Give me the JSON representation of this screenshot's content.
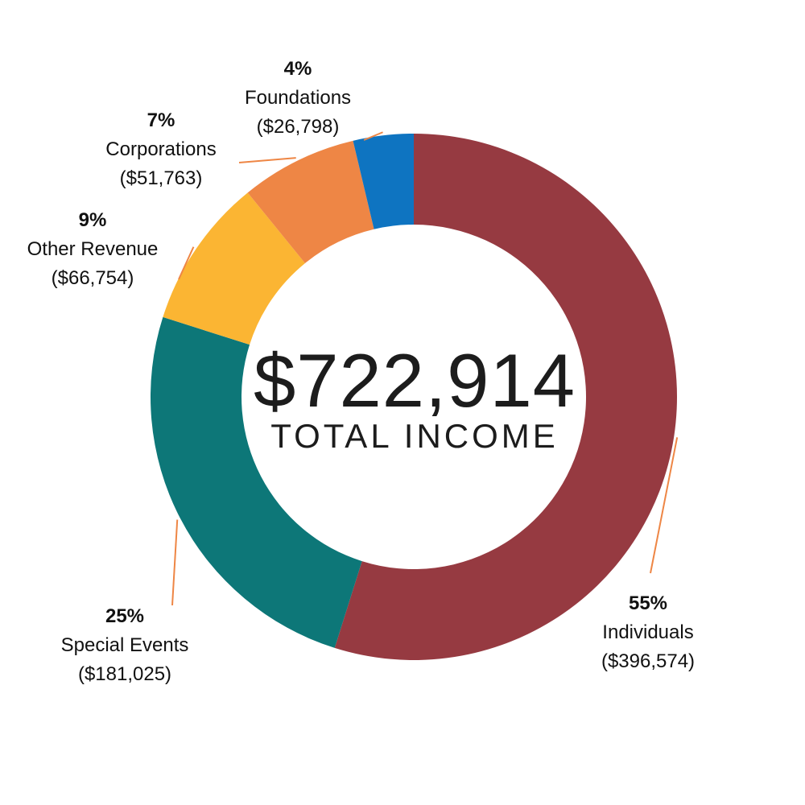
{
  "center": {
    "total": "$722,914",
    "label": "TOTAL INCOME"
  },
  "chart_data": {
    "type": "pie",
    "title": "",
    "total": 722914,
    "slices": [
      {
        "name": "Individuals",
        "percent_label": "55%",
        "amount_label": "($396,574)",
        "value": 396574,
        "color": "#963A41"
      },
      {
        "name": "Special Events",
        "percent_label": "25%",
        "amount_label": "($181,025)",
        "value": 181025,
        "color": "#0D7778"
      },
      {
        "name": "Other Revenue",
        "percent_label": "9%",
        "amount_label": "($66,754)",
        "value": 66754,
        "color": "#FBB533"
      },
      {
        "name": "Corporations",
        "percent_label": "7%",
        "amount_label": "($51,763)",
        "value": 51763,
        "color": "#EE8645"
      },
      {
        "name": "Foundations",
        "percent_label": "4%",
        "amount_label": "($26,798)",
        "value": 26798,
        "color": "#0E74C1"
      }
    ],
    "leader_color": "#EE8645"
  }
}
